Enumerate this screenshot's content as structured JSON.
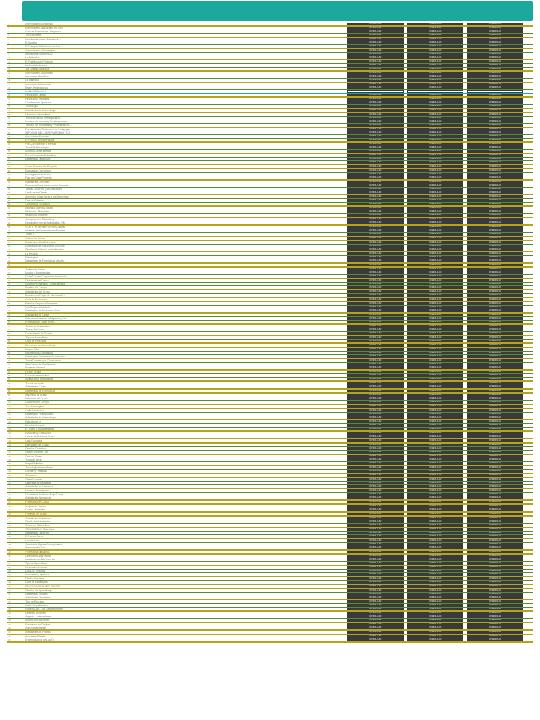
{
  "colors": {
    "header": "#1aa99c",
    "rule_olive": "#b5a516",
    "rule_green": "#5a8a2e",
    "rule_teal": "#1aa99c",
    "btn_dark": "#3a3a3a",
    "btn_white": "#ffffff",
    "text_grey": "#888888"
  },
  "button_labels": [
    "DOWNLOAD",
    "DOWNLOAD",
    "DOWNLOAD"
  ],
  "rows": [
    {
      "id": "1",
      "name": "Aprendizaje y Desarrollo",
      "rule": "olive",
      "btn": "d"
    },
    {
      "id": "2",
      "name": "Aprendizaje Colaborativo en Red",
      "rule": "green",
      "btn": "d"
    },
    {
      "id": "3",
      "name": "Guia de Aprendizaje - Proyectos",
      "rule": "green",
      "btn": "d"
    },
    {
      "id": "4",
      "name": "Tec Educativa",
      "rule": "olive",
      "btn": "d"
    },
    {
      "id": "5",
      "name": "Introducción a las Historias de…",
      "rule": "green",
      "btn": "d"
    },
    {
      "id": "6",
      "name": "El Modelo",
      "rule": "green",
      "btn": "d"
    },
    {
      "id": "7",
      "name": "El Principio Didáctico en la Ens…",
      "rule": "olive",
      "btn": "d"
    },
    {
      "id": "8",
      "name": "Aprendizajes y Estrategias",
      "rule": "green",
      "btn": "d"
    },
    {
      "id": "9",
      "name": "Introducción Momento 2",
      "rule": "green",
      "btn": "d"
    },
    {
      "id": "10",
      "name": "La Didactica",
      "rule": "olive",
      "btn": "d"
    },
    {
      "id": "11",
      "name": "El Portafolio del Profesor",
      "rule": "green",
      "btn": "d"
    },
    {
      "id": "12",
      "name": "Método Montessori",
      "rule": "green",
      "btn": "d"
    },
    {
      "id": "13",
      "name": "1ra Unidad Didáctica",
      "rule": "olive",
      "btn": "d"
    },
    {
      "id": "14",
      "name": "Aprendizaje Cooperativo",
      "rule": "green",
      "btn": "d"
    },
    {
      "id": "15",
      "name": "Innovar en Didactica",
      "rule": "green",
      "btn": "d"
    },
    {
      "id": "16",
      "name": "La Didactica",
      "rule": "olive",
      "btn": "d"
    },
    {
      "id": "17",
      "name": "Innovando la Docencia",
      "rule": "green",
      "btn": "d"
    },
    {
      "id": "18",
      "name": "Bases Pedagogicas",
      "rule": "green",
      "btn": "d"
    },
    {
      "id": "19",
      "name": "Unidad Didactica 5",
      "rule": "teal",
      "btn": "w"
    },
    {
      "id": "20",
      "name": "Revolución Digital",
      "rule": "olive",
      "btn": "d"
    },
    {
      "id": "21",
      "name": "Revolución Industrial",
      "rule": "green",
      "btn": "d"
    },
    {
      "id": "22",
      "name": "Cuaderno de Ejercicios",
      "rule": "green",
      "btn": "d"
    },
    {
      "id": "23",
      "name": "Tecnología",
      "rule": "olive",
      "btn": "d"
    },
    {
      "id": "24",
      "name": "Actividades de Aprendizaje",
      "rule": "olive",
      "btn": "d"
    },
    {
      "id": "25",
      "name": "Didáctica Universitaria",
      "rule": "green",
      "btn": "d"
    },
    {
      "id": "26",
      "name": "Técnicas de las Investigaciones",
      "rule": "green",
      "btn": "d"
    },
    {
      "id": "27",
      "name": "Modelos Curriculares Contemporáne…",
      "rule": "green",
      "btn": "d"
    },
    {
      "id": "28",
      "name": "Tamaño de la Muestra y Procedimiento…",
      "rule": "olive",
      "btn": "d"
    },
    {
      "id": "29",
      "name": "Fundamentos Teóricos de la Pedagogía",
      "rule": "green",
      "btn": "d"
    },
    {
      "id": "30",
      "name": "INFORME DEL OBSERVATORIO TICS",
      "rule": "green",
      "btn": "d"
    },
    {
      "id": "31",
      "name": "Aprendizaje Docente",
      "rule": "green",
      "btn": "d"
    },
    {
      "id": "32",
      "name": "El Práctico de Aprendizaje",
      "rule": "olive",
      "btn": "d"
    },
    {
      "id": "33",
      "name": "Por Qué Aprende a Pensar",
      "rule": "green",
      "btn": "d"
    },
    {
      "id": "34",
      "name": "Tema 2 Metodología",
      "rule": "green",
      "btn": "d"
    },
    {
      "id": "35",
      "name": "Modelo Constructivista",
      "rule": "olive",
      "btn": "d"
    },
    {
      "id": "36",
      "name": "Breve Recuerdo Educativo",
      "rule": "green",
      "btn": "d"
    },
    {
      "id": "37",
      "name": "Estrategias Didácticas",
      "rule": "green",
      "btn": "d"
    },
    {
      "id": "38",
      "name": "",
      "rule": "olive",
      "btn": "d"
    },
    {
      "id": "39",
      "name": "Como Elaborar Un Proyecto",
      "rule": "olive",
      "btn": "d"
    },
    {
      "id": "40",
      "name": "Evaluación Currículum",
      "rule": "green",
      "btn": "d"
    },
    {
      "id": "41",
      "name": "Investigacion de Lecto",
      "rule": "green",
      "btn": "d"
    },
    {
      "id": "42",
      "name": "Plan de Clase Proyecto",
      "rule": "olive",
      "btn": "d"
    },
    {
      "id": "43",
      "name": "Actividades Docentes",
      "rule": "green",
      "btn": "d"
    },
    {
      "id": "44",
      "name": "Propuesta Para la Innovación Docente",
      "rule": "green",
      "btn": "d"
    },
    {
      "id": "45",
      "name": "Tareas Docentes y la Evaluacion",
      "rule": "green",
      "btn": "d"
    },
    {
      "id": "46",
      "name": "Las Nuevas Clases",
      "rule": "olive",
      "btn": "d"
    },
    {
      "id": "47",
      "name": "Aprender Existe Junto a los Elementos",
      "rule": "green",
      "btn": "d"
    },
    {
      "id": "48",
      "name": "Plan de Estudios",
      "rule": "green",
      "btn": "d"
    },
    {
      "id": "49",
      "name": "Conciencia Educativa",
      "rule": "olive",
      "btn": "d"
    },
    {
      "id": "50",
      "name": "Alumnos Nueva Lectura",
      "rule": "green",
      "btn": "d"
    },
    {
      "id": "51",
      "name": "Reflexión - Materiales",
      "rule": "green",
      "btn": "d"
    },
    {
      "id": "52",
      "name": "Instruccion Docente",
      "rule": "olive",
      "btn": "d"
    },
    {
      "id": "53",
      "name": "Componentes Educativos",
      "rule": "green",
      "btn": "d"
    },
    {
      "id": "54",
      "name": "Desarrollo Hoja de Actividades - Filo…",
      "rule": "olive",
      "btn": "d"
    },
    {
      "id": "55",
      "name": "SOC 1 - el Hombre Un Ser Cultural",
      "rule": "green",
      "btn": "d"
    },
    {
      "id": "56",
      "name": "Inicial de los Declaraciones Escritos",
      "rule": "green",
      "btn": "d"
    },
    {
      "id": "57",
      "name": "Teatro II",
      "rule": "olive",
      "btn": "d"
    },
    {
      "id": "58",
      "name": "Criterio del Curso",
      "rule": "olive",
      "btn": "d"
    },
    {
      "id": "59",
      "name": "Existe Una Gida Educativa",
      "rule": "green",
      "btn": "d"
    },
    {
      "id": "60",
      "name": "Evaluación del Estudiante-Docente",
      "rule": "green",
      "btn": "d"
    },
    {
      "id": "61",
      "name": "Diseñando Material de Actividades",
      "rule": "olive",
      "btn": "d"
    },
    {
      "id": "62",
      "name": "La Lección",
      "rule": "green",
      "btn": "d"
    },
    {
      "id": "63",
      "name": "Estrategias",
      "rule": "green",
      "btn": "d"
    },
    {
      "id": "64",
      "name": "Estrategias de Enseñanza Modelo 1",
      "rule": "olive",
      "btn": "d"
    },
    {
      "id": "65",
      "name": "",
      "rule": "olive",
      "btn": "d"
    },
    {
      "id": "66",
      "name": "Trabajo de Curso",
      "rule": "green",
      "btn": "d"
    },
    {
      "id": "67",
      "name": "Modos y Experiencias",
      "rule": "green",
      "btn": "d"
    },
    {
      "id": "68",
      "name": "Ficha Técnica Programas Académico",
      "rule": "olive",
      "btn": "d"
    },
    {
      "id": "69",
      "name": "Divisiones del Curso",
      "rule": "green",
      "btn": "d"
    },
    {
      "id": "70",
      "name": "Modelo Pedagógico Constructivista",
      "rule": "green",
      "btn": "d"
    },
    {
      "id": "71",
      "name": "Practica de Campo",
      "rule": "olive",
      "btn": "d"
    },
    {
      "id": "72",
      "name": "Actividades del Curso",
      "rule": "green",
      "btn": "d"
    },
    {
      "id": "73",
      "name": "Documento Propio de Numeración",
      "rule": "olive",
      "btn": "d"
    },
    {
      "id": "74",
      "name": "Guía de Evaluación",
      "rule": "olive",
      "btn": "d"
    },
    {
      "id": "75",
      "name": "Ejercicio Segundo Semestre",
      "rule": "green",
      "btn": "d"
    },
    {
      "id": "76",
      "name": "Mis Responsabilidades",
      "rule": "green",
      "btn": "d"
    },
    {
      "id": "77",
      "name": "Estrategias de Evaluacion Escri…",
      "rule": "olive",
      "btn": "d"
    },
    {
      "id": "78",
      "name": "Actividades de Clase",
      "rule": "green",
      "btn": "d"
    },
    {
      "id": "79",
      "name": "Estructura Materias Inteligencia y Dis…",
      "rule": "green",
      "btn": "d"
    },
    {
      "id": "80",
      "name": "Proyectos de Clase Progr…",
      "rule": "olive",
      "btn": "d"
    },
    {
      "id": "81",
      "name": "Tareas de Actividades",
      "rule": "green",
      "btn": "d"
    },
    {
      "id": "82",
      "name": "Tareas del Curso",
      "rule": "green",
      "btn": "d"
    },
    {
      "id": "83",
      "name": "Presentación de Temas",
      "rule": "olive",
      "btn": "d"
    },
    {
      "id": "84",
      "name": "Tópicos Aprendidos",
      "rule": "green",
      "btn": "d"
    },
    {
      "id": "85",
      "name": "Guía de Recursos",
      "rule": "olive",
      "btn": "d"
    },
    {
      "id": "86",
      "name": "Elementos del Aprendizaje",
      "rule": "olive",
      "btn": "d"
    },
    {
      "id": "87",
      "name": "Mayo - Etica",
      "rule": "green",
      "btn": "d"
    },
    {
      "id": "88",
      "name": "Experiencias Educativas",
      "rule": "green",
      "btn": "d"
    },
    {
      "id": "89",
      "name": "Estrategias Educativas Semestrales",
      "rule": "olive",
      "btn": "d"
    },
    {
      "id": "90",
      "name": "Tema Docente y la Observación",
      "rule": "green",
      "btn": "d"
    },
    {
      "id": "91",
      "name": "Diseñación de Clarificados",
      "rule": "green",
      "btn": "d"
    },
    {
      "id": "92",
      "name": "Proyecto General",
      "rule": "olive",
      "btn": "d"
    },
    {
      "id": "93",
      "name": "Ficha Técnica",
      "rule": "green",
      "btn": "d"
    },
    {
      "id": "94",
      "name": "Proyecto Académico",
      "rule": "green",
      "btn": "d"
    },
    {
      "id": "95",
      "name": "Incluya de la Importancia",
      "rule": "olive",
      "btn": "d"
    },
    {
      "id": "96",
      "name": "Texto Intermedio",
      "rule": "green",
      "btn": "d"
    },
    {
      "id": "97",
      "name": "Actividades Cuatro",
      "rule": "olive",
      "btn": "d"
    },
    {
      "id": "98",
      "name": "Estrategias de Enseñanza",
      "rule": "olive",
      "btn": "d"
    },
    {
      "id": "99",
      "name": "Aspectos de Curso",
      "rule": "green",
      "btn": "d"
    },
    {
      "id": "100",
      "name": "Ejercicios del Curso",
      "rule": "green",
      "btn": "d"
    },
    {
      "id": "101",
      "name": "Cuaderno de Campo",
      "rule": "olive",
      "btn": "d"
    },
    {
      "id": "102",
      "name": "Tres Estrategias",
      "rule": "olive",
      "btn": "d"
    },
    {
      "id": "103",
      "name": "Calle Actualidad",
      "rule": "green",
      "btn": "d"
    },
    {
      "id": "104",
      "name": "Estrategias Profesionales",
      "rule": "green",
      "btn": "d"
    },
    {
      "id": "105",
      "name": "Actividades de Aprendizaje",
      "rule": "olive",
      "btn": "d"
    },
    {
      "id": "106",
      "name": "Estructura Los",
      "rule": "green",
      "btn": "d"
    },
    {
      "id": "107",
      "name": "Ejercicio Docente",
      "rule": "green",
      "btn": "d"
    },
    {
      "id": "108",
      "name": "El Teatro y Su Actividades",
      "rule": "olive",
      "btn": "d"
    },
    {
      "id": "109",
      "name": "Evolucion y Evaluacion",
      "rule": "green",
      "btn": "d"
    },
    {
      "id": "110",
      "name": "Líneas de Actividad Curso",
      "rule": "olive",
      "btn": "d"
    },
    {
      "id": "111",
      "name": "Lista Educativa",
      "rule": "olive",
      "btn": "d"
    },
    {
      "id": "112",
      "name": "Esenciales del Curso",
      "rule": "green",
      "btn": "d"
    },
    {
      "id": "113",
      "name": "Diseños Didácticos",
      "rule": "green",
      "btn": "d"
    },
    {
      "id": "114",
      "name": "Nuevo Docente Los",
      "rule": "olive",
      "btn": "d"
    },
    {
      "id": "115",
      "name": "Plan del Curso",
      "rule": "green",
      "btn": "d"
    },
    {
      "id": "116",
      "name": "Tema de Lecto",
      "rule": "green",
      "btn": "d"
    },
    {
      "id": "117",
      "name": "Mapa Didáctico",
      "rule": "olive",
      "btn": "d"
    },
    {
      "id": "118",
      "name": "Tecnológica Aprendizaje",
      "rule": "green",
      "btn": "d"
    },
    {
      "id": "119",
      "name": "Lección y Prácticas",
      "rule": "olive",
      "btn": "d"
    },
    {
      "id": "120",
      "name": "S Lectura",
      "rule": "olive",
      "btn": "d"
    },
    {
      "id": "121",
      "name": "Clase Docente",
      "rule": "green",
      "btn": "d"
    },
    {
      "id": "122",
      "name": "Diseñada en Didáctica",
      "rule": "green",
      "btn": "d"
    },
    {
      "id": "123",
      "name": "Actividades de Literatura",
      "rule": "olive",
      "btn": "d"
    },
    {
      "id": "124",
      "name": "Modelos Investigación",
      "rule": "green",
      "btn": "d"
    },
    {
      "id": "125",
      "name": "Resultados de Aprendizaje Pedag…",
      "rule": "green",
      "btn": "d"
    },
    {
      "id": "126",
      "name": "Actividades Afirmativas",
      "rule": "olive",
      "btn": "d"
    },
    {
      "id": "127",
      "name": "Proyectos y el Curso",
      "rule": "olive",
      "btn": "d"
    },
    {
      "id": "128",
      "name": "Mejorando Tareas",
      "rule": "green",
      "btn": "d"
    },
    {
      "id": "129",
      "name": "Cuatro Materiales",
      "rule": "olive",
      "btn": "d"
    },
    {
      "id": "130",
      "name": "Proyecto del Curso",
      "rule": "olive",
      "btn": "d"
    },
    {
      "id": "131",
      "name": "Actividades Didácticas",
      "rule": "green",
      "btn": "d"
    },
    {
      "id": "132",
      "name": "Diseño de Actividades",
      "rule": "green",
      "btn": "d"
    },
    {
      "id": "133",
      "name": "Grupo de Básico Dos",
      "rule": "olive",
      "btn": "d"
    },
    {
      "id": "134",
      "name": "SESIONES de Materiales",
      "rule": "green",
      "btn": "d"
    },
    {
      "id": "135",
      "name": "Estrategias Docentes",
      "rule": "green",
      "btn": "d"
    },
    {
      "id": "136",
      "name": "El Nuevo Curso",
      "rule": "olive",
      "btn": "d"
    },
    {
      "id": "137",
      "name": "Lección Uno",
      "rule": "green",
      "btn": "d"
    },
    {
      "id": "138",
      "name": "Cuadro de Etapas Conceptuales",
      "rule": "green",
      "btn": "d"
    },
    {
      "id": "139",
      "name": "Aprendizaje Guía",
      "rule": "olive",
      "btn": "d"
    },
    {
      "id": "140",
      "name": "Proyectos Educativos",
      "rule": "olive",
      "btn": "d"
    },
    {
      "id": "141",
      "name": "Detección Diagnóstica",
      "rule": "green",
      "btn": "d"
    },
    {
      "id": "142",
      "name": "Identificación del Curso en",
      "rule": "green",
      "btn": "d"
    },
    {
      "id": "143",
      "name": "Tipo de Aprendizaje",
      "rule": "olive",
      "btn": "d"
    },
    {
      "id": "144",
      "name": "Inventario de Áreas",
      "rule": "green",
      "btn": "d"
    },
    {
      "id": "145",
      "name": "Los Dos Tecnicas",
      "rule": "green",
      "btn": "d"
    },
    {
      "id": "146",
      "name": "Innovación y Aportes",
      "rule": "olive",
      "btn": "d"
    },
    {
      "id": "147",
      "name": "Diseño Parciales",
      "rule": "green",
      "btn": "d"
    },
    {
      "id": "148",
      "name": "Guía de Estrategias",
      "rule": "olive",
      "btn": "d"
    },
    {
      "id": "149",
      "name": "INVESTIGACIÓN DE CURSO",
      "rule": "olive",
      "btn": "d"
    },
    {
      "id": "150",
      "name": "Diseños de Aprendizaje",
      "rule": "green",
      "btn": "d"
    },
    {
      "id": "151",
      "name": "Estrategias Iniciales",
      "rule": "green",
      "btn": "d"
    },
    {
      "id": "152",
      "name": "Actividades Generales",
      "rule": "olive",
      "btn": "d"
    },
    {
      "id": "153",
      "name": "Tipo de Recurso",
      "rule": "green",
      "btn": "d"
    },
    {
      "id": "154",
      "name": "Isabel Organizacion",
      "rule": "green",
      "btn": "d"
    },
    {
      "id": "155",
      "name": "Rogers Carl - Los Grandes Apren…",
      "rule": "olive",
      "btn": "d"
    },
    {
      "id": "156",
      "name": "Deberes Docentes",
      "rule": "green",
      "btn": "d"
    },
    {
      "id": "157",
      "name": "Arganto - Antecedentes",
      "rule": "green",
      "btn": "d"
    },
    {
      "id": "158",
      "name": "Indices de Examenes",
      "rule": "olive",
      "btn": "d"
    },
    {
      "id": "159",
      "name": "Educacion en Parejas",
      "rule": "green",
      "btn": "d"
    },
    {
      "id": "160",
      "name": "Aprendizaje Inicial",
      "rule": "olive",
      "btn": "d"
    },
    {
      "id": "161",
      "name": "Actividades de Práctica",
      "rule": "olive",
      "btn": "d"
    },
    {
      "id": "162",
      "name": "Avanzado División",
      "rule": "green",
      "btn": "d"
    },
    {
      "id": "163",
      "name": "Ensayo Acerca de Las Tic",
      "rule": "olive",
      "btn": "d"
    }
  ]
}
